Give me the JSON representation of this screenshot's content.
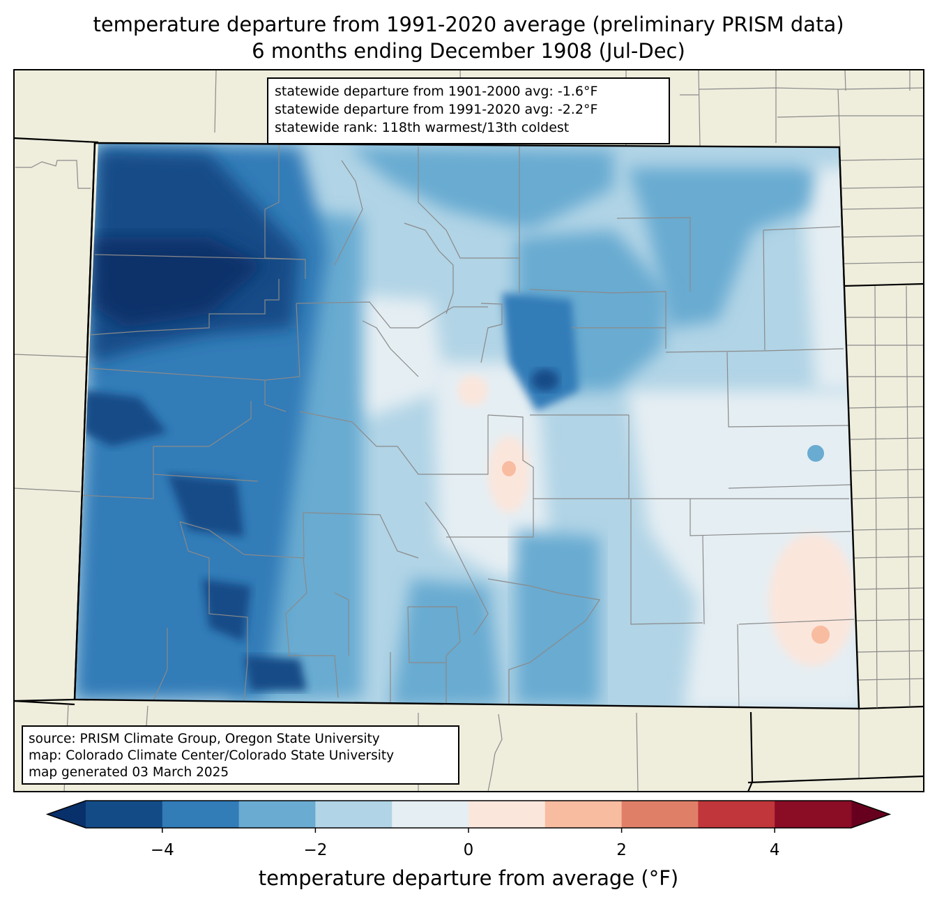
{
  "title": {
    "line1": "temperature departure from 1991-2020 average (preliminary PRISM data)",
    "line2": "6 months ending December 1908 (Jul-Dec)"
  },
  "stats_box": {
    "line1": "statewide departure from 1901-2000 avg: -1.6°F",
    "line2": "statewide departure from 1991-2020 avg: -2.2°F",
    "line3": "statewide rank: 118th warmest/13th coldest"
  },
  "source_box": {
    "line1": "source: PRISM Climate Group, Oregon State University",
    "line2": "map: Colorado Climate Center/Colorado State University",
    "line3": "map generated 03 March 2025"
  },
  "colorbar": {
    "label": "temperature departure from average (°F)",
    "ticks": [
      {
        "label": "−4",
        "value": -4
      },
      {
        "label": "−2",
        "value": -2
      },
      {
        "label": "0",
        "value": 0
      },
      {
        "label": "2",
        "value": 2
      },
      {
        "label": "4",
        "value": 4
      }
    ],
    "range": [
      -5,
      5
    ],
    "bins": [
      {
        "from": -5,
        "to": -4,
        "color": "#134b87"
      },
      {
        "from": -4,
        "to": -3,
        "color": "#327cb8"
      },
      {
        "from": -3,
        "to": -2,
        "color": "#69abd1"
      },
      {
        "from": -2,
        "to": -1,
        "color": "#b1d4e6"
      },
      {
        "from": -1,
        "to": 0,
        "color": "#e5eef3"
      },
      {
        "from": 0,
        "to": 1,
        "color": "#fbe6dc"
      },
      {
        "from": 1,
        "to": 2,
        "color": "#f8bca1"
      },
      {
        "from": 2,
        "to": 3,
        "color": "#e07f68"
      },
      {
        "from": 3,
        "to": 4,
        "color": "#c0363a"
      },
      {
        "from": 4,
        "to": 5,
        "color": "#8a0c25"
      }
    ],
    "under_color": "#08306b",
    "over_color": "#67001f"
  },
  "map_colors": {
    "land_outside": "#efeddc",
    "county_lines": "#8a8a8a",
    "state_lines": "#000000"
  }
}
